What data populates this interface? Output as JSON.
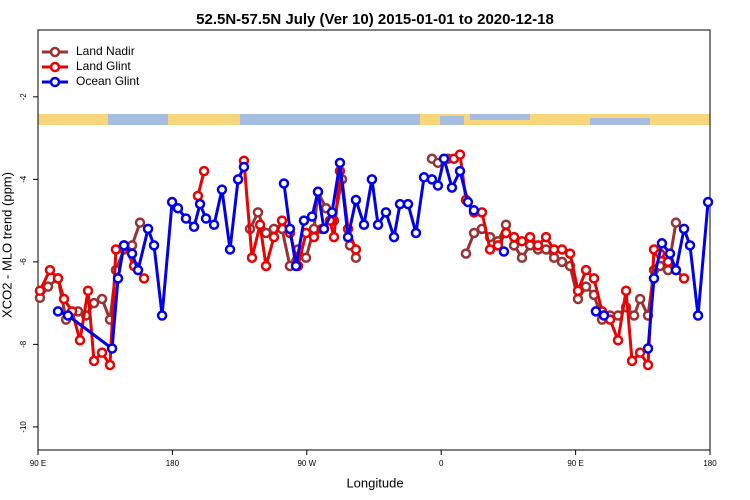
{
  "chart_data": {
    "type": "line",
    "title": "52.5N-57.5N July (Ver 10)   2015-01-01 to 2020-12-18",
    "xlabel": "Longitude",
    "ylabel": "XCO2 - MLO trend (ppm)",
    "xlim": [
      90,
      540
    ],
    "xticks": [
      {
        "value": 90,
        "label": "90 E"
      },
      180,
      {
        "value": 270,
        "label": "90 W"
      },
      {
        "value": 360,
        "label": "0"
      },
      {
        "value": 450,
        "label": "90 E"
      },
      {
        "value": 540,
        "label": "180"
      }
    ],
    "ylim": [
      -10.56,
      -0.38
    ],
    "yticks": [
      -2,
      -4,
      -6,
      -8,
      -10
    ],
    "legend": "top-left",
    "series": [
      {
        "name": "Land Nadir",
        "color": "#993333",
        "x": [
          91.3,
          96.7,
          103.4,
          108.8,
          116.8,
          122.1,
          127.5,
          132.9,
          138.2,
          142.2,
          147.6,
          153,
          158.3,
          null,
          232,
          237.3,
          242.7,
          248,
          253.4,
          258.7,
          264.1,
          269.5,
          274.8,
          277.5,
          282.9,
          288.2,
          293.6,
          298.9,
          302.9,
          null,
          353.8,
          357.8,
          364.5,
          null,
          376.6,
          382,
          387.3,
          392.7,
          398,
          403.4,
          408.8,
          414.1,
          419.5,
          424.8,
          430.2,
          435.6,
          440.9,
          446.3,
          451.6,
          457,
          462.3,
          467.7,
          473.1,
          478.4,
          483.8,
          489.2,
          493.2,
          498.5,
          502.5,
          506.5,
          511.9,
          517.2
        ],
        "values": [
          -6.87,
          -6.6,
          -6.4,
          -7.4,
          -7.2,
          -7.3,
          -7.0,
          -6.9,
          -7.4,
          -6.2,
          -5.7,
          -5.6,
          -5.05,
          null,
          -5.2,
          -4.8,
          -5.3,
          -5.2,
          -5.2,
          -6.1,
          -5.7,
          -5.9,
          -5.2,
          -4.3,
          -4.7,
          -5.0,
          -4.0,
          -5.6,
          -5.9,
          null,
          -3.5,
          -3.6,
          -3.5,
          null,
          -5.8,
          -5.3,
          -5.2,
          -5.4,
          -5.5,
          -5.1,
          -5.6,
          -5.9,
          -5.6,
          -5.7,
          -5.7,
          -5.9,
          -6.0,
          -6.1,
          -6.9,
          -6.6,
          -6.8,
          -7.4,
          -7.3,
          -7.3,
          -7.1,
          -7.3,
          -6.9,
          -7.3,
          -6.2,
          -6.1,
          -6.2,
          -5.05
        ]
      },
      {
        "name": "Land Glint",
        "color": "#ee0000",
        "x": [
          91.3,
          98,
          103.4,
          107.4,
          112.8,
          118.1,
          123.5,
          127.5,
          132.9,
          138.2,
          142.2,
          147.6,
          154.3,
          161,
          null,
          197.1,
          201.2,
          null,
          227.9,
          233.3,
          238.7,
          242.7,
          248,
          253.4,
          258.7,
          264.1,
          269.5,
          274.8,
          280.2,
          285.5,
          288.2,
          292.2,
          297.6,
          302.9,
          null,
          368.5,
          372.6,
          376.6,
          382,
          387.3,
          392.7,
          398,
          403.4,
          408.8,
          414.1,
          419.5,
          424.8,
          430.2,
          435.6,
          440.9,
          446.3,
          451.6,
          457,
          462.3,
          467.7,
          473.1,
          478.4,
          483.8,
          487.8,
          493.2,
          498.5,
          502.5,
          506.5,
          511.9,
          522.6
        ],
        "values": [
          -6.7,
          -6.2,
          -6.4,
          -6.9,
          -7.2,
          -7.9,
          -6.7,
          -8.4,
          -8.2,
          -8.5,
          -5.7,
          -5.6,
          -6.1,
          -6.4,
          null,
          -4.4,
          -3.8,
          null,
          -3.55,
          -5.9,
          -5.1,
          -6.1,
          -5.4,
          -5.0,
          -5.3,
          -6.1,
          -5.3,
          -5.4,
          -5.2,
          -5.0,
          -5.4,
          -3.8,
          -5.2,
          -5.7,
          null,
          -3.5,
          -3.4,
          -4.5,
          -4.8,
          -4.8,
          -5.7,
          -5.6,
          -5.3,
          -5.4,
          -5.5,
          -5.4,
          -5.6,
          -5.4,
          -5.7,
          -5.7,
          -5.8,
          -6.7,
          -6.2,
          -6.4,
          -7.2,
          -7.4,
          -7.9,
          -6.7,
          -8.4,
          -8.2,
          -8.5,
          -5.7,
          -5.8,
          -6.0,
          -6.4
        ]
      },
      {
        "name": "Ocean Glint",
        "color": "#0000ee",
        "x": [
          103.4,
          110.1,
          139.6,
          143.6,
          147.6,
          153,
          157,
          163.7,
          167.7,
          173.1,
          179.8,
          183.7,
          189.1,
          194.5,
          198.5,
          202.5,
          207.9,
          213.2,
          218.6,
          224,
          227.9,
          null,
          254.7,
          258.7,
          262.8,
          268.1,
          273.5,
          277.5,
          281.5,
          286.9,
          292.2,
          297.6,
          302.9,
          308.3,
          313.6,
          317.7,
          323,
          328.4,
          332.4,
          337.8,
          343.1,
          348.5,
          353.8,
          357.8,
          361.9,
          367.2,
          372.6,
          377.9,
          381.9,
          null,
          402,
          null,
          463.6,
          469,
          null,
          498.5,
          502.5,
          507.8,
          513.2,
          517.2,
          522.6,
          526.6,
          532,
          538.7
        ],
        "values": [
          -7.2,
          -7.3,
          -8.1,
          -6.4,
          -5.6,
          -5.8,
          -6.2,
          -5.2,
          -5.6,
          -7.3,
          -4.55,
          -4.7,
          -4.95,
          -5.15,
          -4.6,
          -4.95,
          -5.1,
          -4.25,
          -5.7,
          -4.0,
          -3.7,
          null,
          -4.1,
          -5.2,
          -6.1,
          -5.0,
          -4.9,
          -4.3,
          -5.2,
          -4.8,
          -3.6,
          -5.4,
          -4.5,
          -5.1,
          -4.0,
          -5.1,
          -4.8,
          -5.4,
          -4.6,
          -4.6,
          -5.3,
          -3.95,
          -4.0,
          -4.15,
          -3.5,
          -4.2,
          -3.8,
          -4.55,
          -4.75,
          null,
          -5.75,
          null,
          -7.2,
          -7.3,
          null,
          -8.1,
          -6.4,
          -5.55,
          -5.8,
          -6.2,
          -5.2,
          -5.6,
          -7.3,
          -4.55
        ]
      }
    ]
  }
}
